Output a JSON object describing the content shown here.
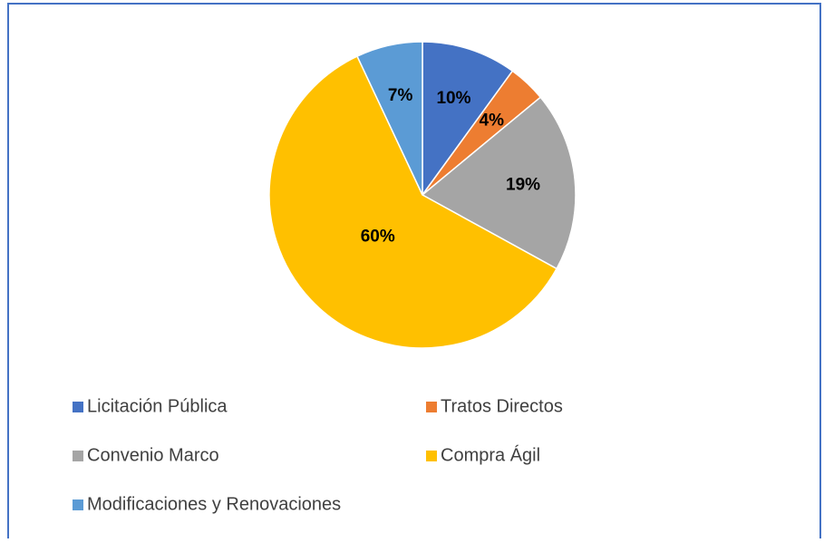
{
  "chart_data": {
    "type": "pie",
    "categories": [
      "Licitación Pública",
      "Tratos Directos",
      "Convenio Marco",
      "Compra Ágil",
      "Modificaciones y Renovaciones"
    ],
    "values": [
      10,
      4,
      19,
      60,
      7
    ],
    "value_labels": [
      "10%",
      "4%",
      "19%",
      "60%",
      "7%"
    ],
    "colors": [
      "#4472c4",
      "#ed7d31",
      "#a5a5a5",
      "#ffc000",
      "#5b9bd5"
    ],
    "legend": "bottom"
  }
}
